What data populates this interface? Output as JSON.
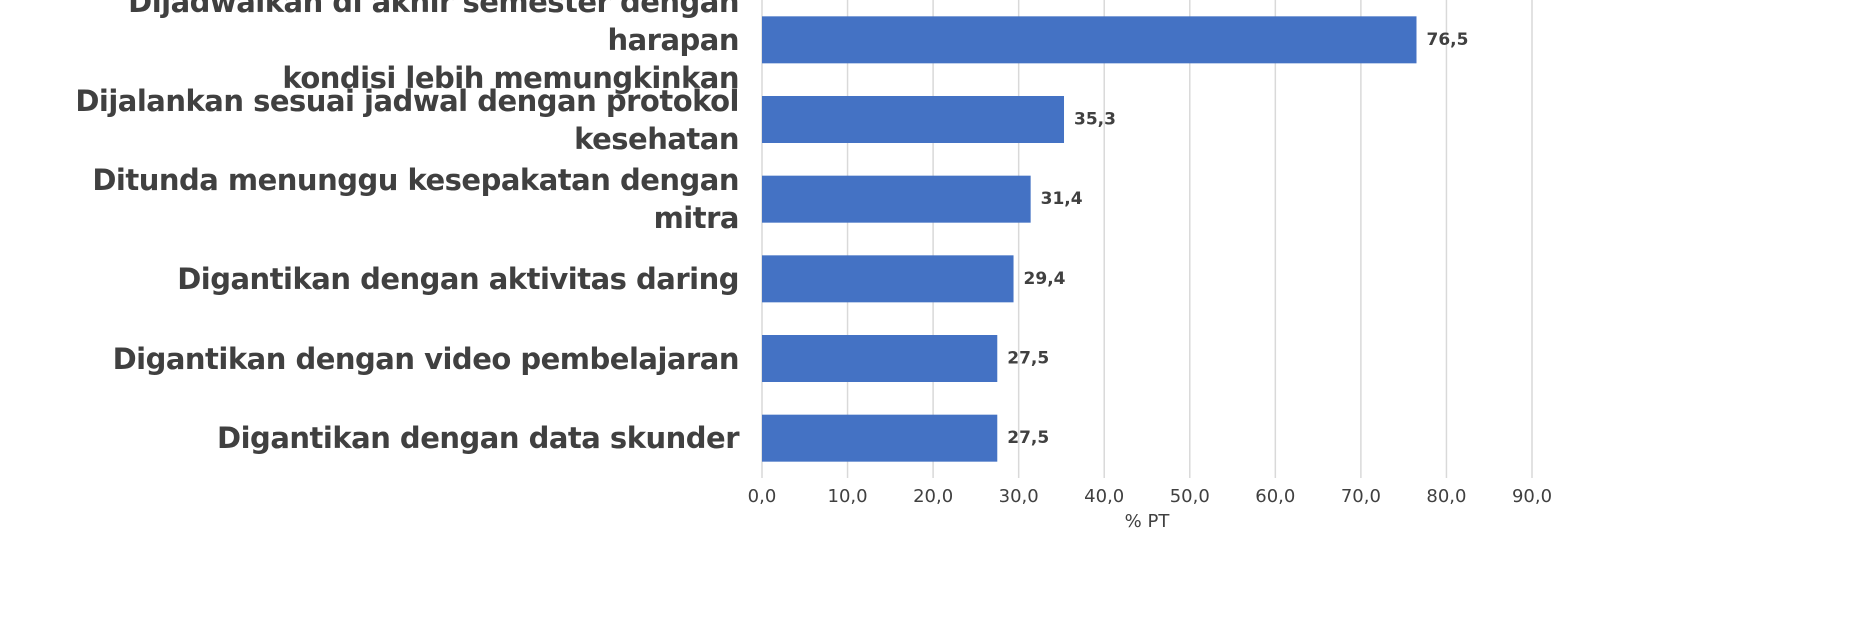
{
  "chart_data": {
    "type": "bar",
    "orientation": "horizontal",
    "categories": [
      "Dijadwalkan di akhir semester dengan harapan\nkondisi lebih memungkinkan",
      "Dijalankan sesuai jadwal dengan protokol kesehatan",
      "Ditunda menunggu kesepakatan dengan mitra",
      "Digantikan dengan aktivitas daring",
      "Digantikan dengan video pembelajaran",
      "Digantikan dengan data skunder"
    ],
    "values": [
      76.5,
      35.3,
      31.4,
      29.4,
      27.5,
      27.5
    ],
    "value_labels": [
      "76,5",
      "35,3",
      "31,4",
      "29,4",
      "27,5",
      "27,5"
    ],
    "color": "#4472c4",
    "xlim": [
      0,
      90
    ],
    "xticks": [
      {
        "value": 0,
        "label": "0,0"
      },
      {
        "value": 10,
        "label": "10,0"
      },
      {
        "value": 20,
        "label": "20,0"
      },
      {
        "value": 30,
        "label": "30,0"
      },
      {
        "value": 40,
        "label": "40,0"
      },
      {
        "value": 50,
        "label": "50,0"
      },
      {
        "value": 60,
        "label": "60,0"
      },
      {
        "value": 70,
        "label": "70,0"
      },
      {
        "value": 80,
        "label": "80,0"
      },
      {
        "value": 90,
        "label": "90,0"
      }
    ],
    "xlabel": "% PT",
    "grid": true
  }
}
